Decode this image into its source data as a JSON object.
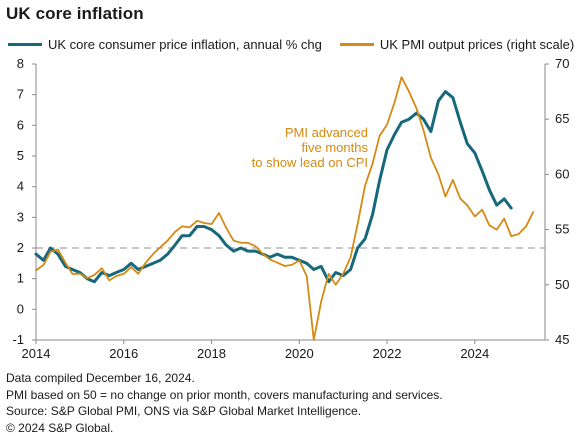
{
  "header": {
    "title": "UK core inflation"
  },
  "footer": {
    "notes": [
      "Data compiled December 16, 2024.",
      "PMI based on 50 = no change on prior month, covers manufacturing and services.",
      "Source: S&P Global PMI, ONS via S&P Global Market Intelligence.",
      "© 2024 S&P Global."
    ]
  },
  "chart_data": {
    "type": "line",
    "title": "UK core inflation",
    "legend_position": "top",
    "grid": false,
    "x_range": [
      2014,
      2025.6
    ],
    "x_ticks": [
      "2014",
      "2016",
      "2018",
      "2020",
      "2022",
      "2024"
    ],
    "y_left": {
      "range": [
        -1,
        8
      ],
      "ticks": [
        "-1",
        "0",
        "1",
        "2",
        "3",
        "4",
        "5",
        "6",
        "7",
        "8"
      ]
    },
    "y_right": {
      "range": [
        45,
        70
      ],
      "ticks": [
        "45",
        "50",
        "55",
        "60",
        "65",
        "70"
      ]
    },
    "reference_line": {
      "axis": "left",
      "value": 2,
      "style": "dashed"
    },
    "annotation": {
      "lines": [
        "PMI advanced",
        "five months",
        "to show lead on CPI"
      ],
      "color": "#d58a14"
    },
    "series": [
      {
        "name": "UK core consumer price inflation, annual % chg",
        "axis": "left",
        "color": "#17687a",
        "points": [
          [
            2014.0,
            1.8
          ],
          [
            2014.17,
            1.6
          ],
          [
            2014.33,
            2.0
          ],
          [
            2014.5,
            1.8
          ],
          [
            2014.67,
            1.4
          ],
          [
            2014.83,
            1.3
          ],
          [
            2015.0,
            1.2
          ],
          [
            2015.17,
            1.0
          ],
          [
            2015.33,
            0.9
          ],
          [
            2015.5,
            1.2
          ],
          [
            2015.67,
            1.1
          ],
          [
            2015.83,
            1.2
          ],
          [
            2016.0,
            1.3
          ],
          [
            2016.17,
            1.5
          ],
          [
            2016.33,
            1.3
          ],
          [
            2016.5,
            1.4
          ],
          [
            2016.67,
            1.5
          ],
          [
            2016.83,
            1.6
          ],
          [
            2017.0,
            1.8
          ],
          [
            2017.17,
            2.1
          ],
          [
            2017.33,
            2.4
          ],
          [
            2017.5,
            2.4
          ],
          [
            2017.67,
            2.7
          ],
          [
            2017.83,
            2.7
          ],
          [
            2018.0,
            2.6
          ],
          [
            2018.17,
            2.4
          ],
          [
            2018.33,
            2.1
          ],
          [
            2018.5,
            1.9
          ],
          [
            2018.67,
            2.0
          ],
          [
            2018.83,
            1.9
          ],
          [
            2019.0,
            1.9
          ],
          [
            2019.17,
            1.8
          ],
          [
            2019.33,
            1.7
          ],
          [
            2019.5,
            1.8
          ],
          [
            2019.67,
            1.7
          ],
          [
            2019.83,
            1.7
          ],
          [
            2020.0,
            1.6
          ],
          [
            2020.17,
            1.5
          ],
          [
            2020.33,
            1.3
          ],
          [
            2020.5,
            1.4
          ],
          [
            2020.67,
            0.9
          ],
          [
            2020.83,
            1.2
          ],
          [
            2021.0,
            1.1
          ],
          [
            2021.17,
            1.3
          ],
          [
            2021.33,
            2.0
          ],
          [
            2021.5,
            2.3
          ],
          [
            2021.67,
            3.1
          ],
          [
            2021.83,
            4.2
          ],
          [
            2022.0,
            5.2
          ],
          [
            2022.17,
            5.7
          ],
          [
            2022.33,
            6.1
          ],
          [
            2022.5,
            6.2
          ],
          [
            2022.67,
            6.4
          ],
          [
            2022.83,
            6.2
          ],
          [
            2023.0,
            5.8
          ],
          [
            2023.17,
            6.8
          ],
          [
            2023.33,
            7.1
          ],
          [
            2023.5,
            6.9
          ],
          [
            2023.67,
            6.1
          ],
          [
            2023.83,
            5.4
          ],
          [
            2024.0,
            5.1
          ],
          [
            2024.17,
            4.5
          ],
          [
            2024.33,
            3.9
          ],
          [
            2024.5,
            3.4
          ],
          [
            2024.67,
            3.6
          ],
          [
            2024.83,
            3.3
          ]
        ]
      },
      {
        "name": "UK PMI output prices (right scale)",
        "axis": "right",
        "color": "#d58a14",
        "points": [
          [
            2014.0,
            51.3
          ],
          [
            2014.17,
            51.8
          ],
          [
            2014.33,
            53.0
          ],
          [
            2014.5,
            53.2
          ],
          [
            2014.67,
            52.0
          ],
          [
            2014.83,
            51.0
          ],
          [
            2015.0,
            51.0
          ],
          [
            2015.17,
            50.6
          ],
          [
            2015.33,
            50.9
          ],
          [
            2015.5,
            51.5
          ],
          [
            2015.67,
            50.4
          ],
          [
            2015.83,
            50.8
          ],
          [
            2016.0,
            51.0
          ],
          [
            2016.17,
            51.6
          ],
          [
            2016.33,
            51.0
          ],
          [
            2016.5,
            52.0
          ],
          [
            2016.67,
            52.8
          ],
          [
            2016.83,
            53.4
          ],
          [
            2017.0,
            54.0
          ],
          [
            2017.17,
            54.8
          ],
          [
            2017.33,
            55.3
          ],
          [
            2017.5,
            55.2
          ],
          [
            2017.67,
            55.8
          ],
          [
            2017.83,
            55.6
          ],
          [
            2018.0,
            55.5
          ],
          [
            2018.17,
            56.5
          ],
          [
            2018.33,
            55.2
          ],
          [
            2018.5,
            54.0
          ],
          [
            2018.67,
            53.8
          ],
          [
            2018.83,
            53.8
          ],
          [
            2019.0,
            53.5
          ],
          [
            2019.17,
            52.8
          ],
          [
            2019.33,
            52.3
          ],
          [
            2019.5,
            52.0
          ],
          [
            2019.67,
            51.7
          ],
          [
            2019.83,
            51.8
          ],
          [
            2020.0,
            52.2
          ],
          [
            2020.17,
            50.8
          ],
          [
            2020.33,
            45.0
          ],
          [
            2020.5,
            48.5
          ],
          [
            2020.67,
            51.0
          ],
          [
            2020.83,
            50.0
          ],
          [
            2021.0,
            51.0
          ],
          [
            2021.17,
            52.5
          ],
          [
            2021.33,
            55.5
          ],
          [
            2021.5,
            59.0
          ],
          [
            2021.67,
            61.0
          ],
          [
            2021.83,
            63.5
          ],
          [
            2022.0,
            64.5
          ],
          [
            2022.17,
            66.5
          ],
          [
            2022.33,
            68.8
          ],
          [
            2022.5,
            67.5
          ],
          [
            2022.67,
            66.0
          ],
          [
            2022.83,
            64.0
          ],
          [
            2023.0,
            61.5
          ],
          [
            2023.17,
            60.0
          ],
          [
            2023.33,
            58.0
          ],
          [
            2023.5,
            59.5
          ],
          [
            2023.67,
            57.8
          ],
          [
            2023.83,
            57.2
          ],
          [
            2024.0,
            56.2
          ],
          [
            2024.17,
            56.8
          ],
          [
            2024.33,
            55.4
          ],
          [
            2024.5,
            55.0
          ],
          [
            2024.67,
            56.0
          ],
          [
            2024.83,
            54.4
          ],
          [
            2025.0,
            54.6
          ],
          [
            2025.17,
            55.3
          ],
          [
            2025.33,
            56.6
          ]
        ]
      }
    ]
  }
}
